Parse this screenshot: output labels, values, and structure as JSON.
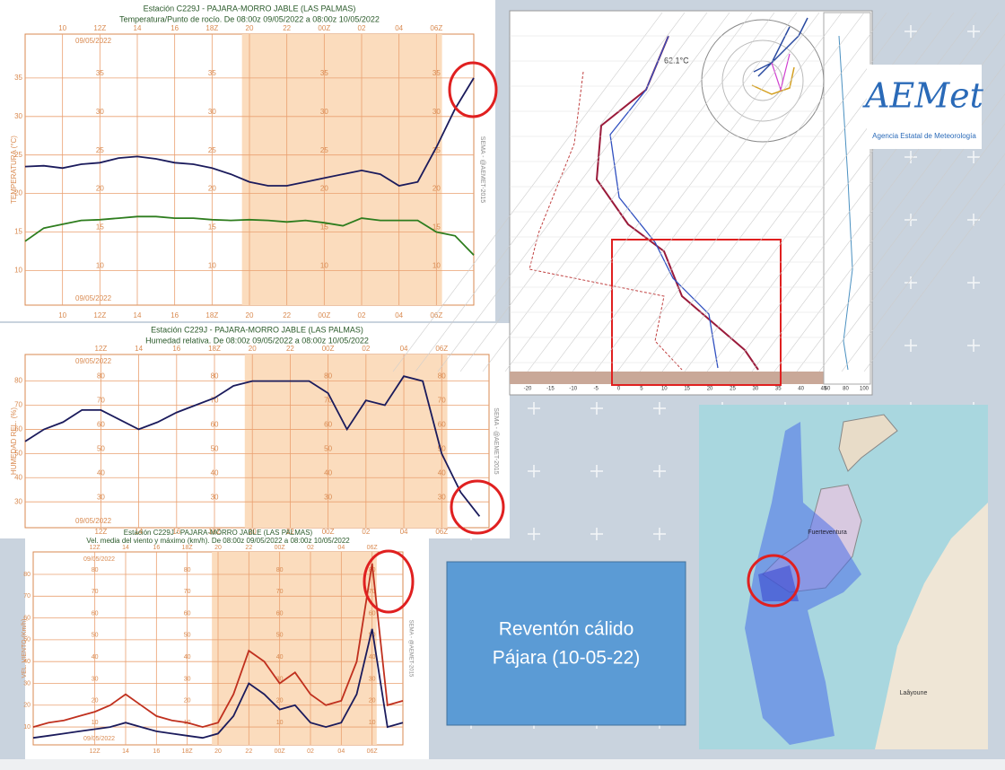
{
  "chart_data": [
    {
      "type": "line",
      "title": "Estación C229J - PAJARA-MORRO JABLE (LAS PALMAS)",
      "subtitle": "Temperatura/Punto de rocío. De 08:00z 09/05/2022 a 08:00z 10/05/2022",
      "y_label": "TEMPERATURA (°C)",
      "right_label": "SEMA - @AEMET-2015",
      "date": "09/05/2022",
      "xlim": [
        8,
        32
      ],
      "ylim": [
        5.5,
        40.7
      ],
      "night": [
        19.6,
        30.3
      ],
      "grid": true,
      "xticks": [
        10,
        {
          "value": 12,
          "label": "12Z"
        },
        14,
        16,
        {
          "value": 18,
          "label": "18Z"
        },
        20,
        22,
        {
          "value": 24,
          "label": "00Z"
        },
        {
          "value": 26,
          "label": "02"
        },
        {
          "value": 28,
          "label": "04"
        },
        {
          "value": 30,
          "label": "06Z"
        }
      ],
      "yticks": [
        10,
        15,
        20,
        25,
        30,
        35
      ],
      "x": [
        8,
        9,
        10,
        11,
        12,
        13,
        14,
        15,
        16,
        17,
        18,
        19,
        20,
        21,
        22,
        23,
        24,
        25,
        26,
        27,
        28,
        29,
        30,
        31,
        32
      ],
      "series": [
        {
          "color": "#1b1b5c",
          "values": [
            23.5,
            23.6,
            23.3,
            23.8,
            24,
            24.6,
            24.8,
            24.5,
            24,
            23.8,
            23.3,
            22.5,
            21.5,
            21,
            21,
            21.5,
            22,
            22.5,
            23,
            22.5,
            21,
            21.5,
            26,
            31,
            35
          ]
        },
        {
          "color": "#2e7d1e",
          "values": [
            13.8,
            15.5,
            16,
            16.5,
            16.6,
            16.8,
            17,
            17,
            16.8,
            16.8,
            16.6,
            16.5,
            16.6,
            16.5,
            16.3,
            16.5,
            16.2,
            15.8,
            16.8,
            16.5,
            16.5,
            16.5,
            15,
            14.5,
            12
          ]
        }
      ]
    },
    {
      "type": "line",
      "title": "Estación C229J - PAJARA-MORRO JABLE (LAS PALMAS)",
      "subtitle": "Humedad relativa. De 08:00z 09/05/2022 a 08:00z 10/05/2022",
      "y_label": "HUMEDAD REL. (%)",
      "right_label": "SEMA - @AEMET-2015",
      "date": "09/05/2022",
      "xlim": [
        8,
        32.5
      ],
      "ylim": [
        19.3,
        91
      ],
      "night": [
        19.6,
        30.3
      ],
      "grid": true,
      "xticks": [
        {
          "value": 12,
          "label": "12Z"
        },
        14,
        16,
        {
          "value": 18,
          "label": "18Z"
        },
        20,
        22,
        {
          "value": 24,
          "label": "00Z"
        },
        {
          "value": 26,
          "label": "02"
        },
        {
          "value": 28,
          "label": "04"
        },
        {
          "value": 30,
          "label": "06Z"
        }
      ],
      "yticks": [
        30,
        40,
        50,
        60,
        70,
        80
      ],
      "x": [
        8,
        9,
        10,
        11,
        12,
        13,
        14,
        15,
        16,
        17,
        18,
        19,
        20,
        21,
        22,
        23,
        24,
        25,
        26,
        27,
        28,
        29,
        30,
        31,
        32
      ],
      "series": [
        {
          "color": "#1b1b5c",
          "values": [
            55,
            60,
            63,
            68,
            68,
            64,
            60,
            63,
            67,
            70,
            73,
            78,
            80,
            80,
            80,
            80,
            75,
            60,
            72,
            70,
            82,
            80,
            50,
            34,
            24
          ]
        }
      ]
    },
    {
      "type": "line",
      "title": "Estación C229J - PAJARA-MORRO JABLE (LAS PALMAS)",
      "subtitle": "Vel. media del viento y máximo (km/h). De 08:00z 09/05/2022 a 08:00z 10/05/2022",
      "y_label": "VEL. VIENTO (Km/h)",
      "right_label": "SEMA - @AEMET-2015",
      "date": "09/05/2022",
      "xlim": [
        8,
        32
      ],
      "ylim": [
        1.8,
        90.3
      ],
      "night": [
        19.6,
        30.3
      ],
      "grid": true,
      "xticks": [
        {
          "value": 12,
          "label": "12Z"
        },
        14,
        16,
        {
          "value": 18,
          "label": "18Z"
        },
        20,
        22,
        {
          "value": 24,
          "label": "00Z"
        },
        {
          "value": 26,
          "label": "02"
        },
        {
          "value": 28,
          "label": "04"
        },
        {
          "value": 30,
          "label": "06Z"
        }
      ],
      "yticks": [
        10,
        20,
        30,
        40,
        50,
        60,
        70,
        80
      ],
      "x": [
        8,
        9,
        10,
        11,
        12,
        13,
        14,
        15,
        16,
        17,
        18,
        19,
        20,
        21,
        22,
        23,
        24,
        25,
        26,
        27,
        28,
        29,
        30,
        31,
        32
      ],
      "series": [
        {
          "color": "#c0301e",
          "values": [
            10,
            12,
            13,
            15,
            17,
            20,
            25,
            20,
            15,
            13,
            12,
            10,
            12,
            25,
            45,
            40,
            30,
            35,
            25,
            20,
            22,
            40,
            85,
            20,
            22
          ]
        },
        {
          "color": "#1b1b5c",
          "values": [
            5,
            6,
            7,
            8,
            9,
            10,
            12,
            10,
            8,
            7,
            6,
            5,
            7,
            15,
            30,
            25,
            18,
            20,
            12,
            10,
            12,
            25,
            55,
            10,
            12
          ]
        }
      ]
    }
  ],
  "sounding": {
    "temperature_label": "62.1°C",
    "xticks": [
      -20,
      -15,
      -10,
      -5,
      0,
      5,
      10,
      15,
      20,
      25,
      30,
      35,
      40,
      45
    ],
    "humidity_ticks": [
      60,
      80,
      100
    ]
  },
  "logo": {
    "name": "AEMet",
    "agency": "Agencia Estatal de Meteorología"
  },
  "map": {
    "island": "Fuerteventura",
    "city": "Laâyoune"
  },
  "caption": {
    "line1": "Reventón cálido",
    "line2": "Pájara (10-05-22)"
  }
}
